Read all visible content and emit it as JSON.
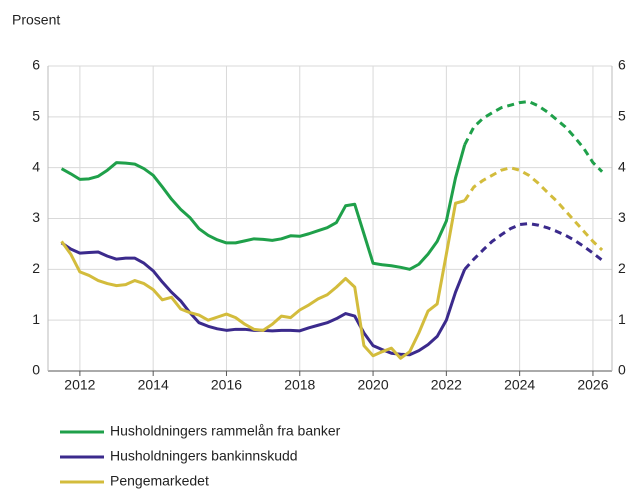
{
  "chart_data": {
    "type": "line",
    "title": "Prosent",
    "x": [
      2011.5,
      2011.75,
      2012,
      2012.25,
      2012.5,
      2012.75,
      2013,
      2013.25,
      2013.5,
      2013.75,
      2014,
      2014.25,
      2014.5,
      2014.75,
      2015,
      2015.25,
      2015.5,
      2015.75,
      2016,
      2016.25,
      2016.5,
      2016.75,
      2017,
      2017.25,
      2017.5,
      2017.75,
      2018,
      2018.25,
      2018.5,
      2018.75,
      2019,
      2019.25,
      2019.5,
      2019.75,
      2020,
      2020.25,
      2020.5,
      2020.75,
      2021,
      2021.25,
      2021.5,
      2021.75,
      2022,
      2022.25,
      2022.5,
      2022.75,
      2023,
      2023.25,
      2023.5,
      2023.75,
      2024,
      2024.25,
      2024.5,
      2024.75,
      2025,
      2025.25,
      2025.5,
      2025.75,
      2026,
      2026.25
    ],
    "series": [
      {
        "name": "Husholdningers rammelån fra banker",
        "color": "#1fa04a",
        "values": [
          3.98,
          3.88,
          3.77,
          3.78,
          3.83,
          3.95,
          4.1,
          4.09,
          4.07,
          3.98,
          3.85,
          3.62,
          3.38,
          3.18,
          3.02,
          2.8,
          2.67,
          2.58,
          2.52,
          2.52,
          2.56,
          2.6,
          2.59,
          2.57,
          2.6,
          2.66,
          2.65,
          2.7,
          2.76,
          2.82,
          2.92,
          3.25,
          3.28,
          2.7,
          2.12,
          2.09,
          2.07,
          2.04,
          2.0,
          2.1,
          2.3,
          2.55,
          2.95,
          3.8,
          4.45,
          4.8,
          4.97,
          5.08,
          5.18,
          5.23,
          5.28,
          5.3,
          5.22,
          5.1,
          4.95,
          4.8,
          4.6,
          4.38,
          4.1,
          3.92
        ]
      },
      {
        "name": "Husholdningers bankinnskudd",
        "color": "#3b2a8c",
        "values": [
          2.52,
          2.4,
          2.32,
          2.33,
          2.34,
          2.26,
          2.2,
          2.22,
          2.22,
          2.12,
          1.97,
          1.75,
          1.55,
          1.38,
          1.15,
          0.95,
          0.88,
          0.83,
          0.8,
          0.82,
          0.82,
          0.8,
          0.8,
          0.79,
          0.8,
          0.8,
          0.79,
          0.85,
          0.9,
          0.95,
          1.03,
          1.13,
          1.08,
          0.75,
          0.5,
          0.42,
          0.35,
          0.33,
          0.32,
          0.4,
          0.52,
          0.68,
          1.0,
          1.55,
          2.0,
          2.2,
          2.38,
          2.55,
          2.68,
          2.8,
          2.88,
          2.9,
          2.87,
          2.82,
          2.75,
          2.67,
          2.57,
          2.45,
          2.32,
          2.18
        ]
      },
      {
        "name": "Pengemarkedet",
        "color": "#d3bc3c",
        "values": [
          2.55,
          2.3,
          1.95,
          1.88,
          1.78,
          1.72,
          1.68,
          1.7,
          1.78,
          1.72,
          1.6,
          1.4,
          1.45,
          1.22,
          1.15,
          1.1,
          1.0,
          1.06,
          1.12,
          1.05,
          0.92,
          0.82,
          0.8,
          0.92,
          1.08,
          1.05,
          1.2,
          1.3,
          1.42,
          1.5,
          1.65,
          1.82,
          1.65,
          0.5,
          0.3,
          0.38,
          0.45,
          0.25,
          0.38,
          0.75,
          1.18,
          1.32,
          2.3,
          3.3,
          3.35,
          3.62,
          3.75,
          3.85,
          3.95,
          4.0,
          3.95,
          3.85,
          3.7,
          3.52,
          3.35,
          3.15,
          2.95,
          2.75,
          2.55,
          2.38
        ]
      }
    ],
    "forecast_from": 2022.5,
    "xlim": [
      2011.13,
      2026.52
    ],
    "xticks": [
      2012,
      2014,
      2016,
      2018,
      2020,
      2022,
      2024,
      2026
    ],
    "ylim": [
      0,
      6
    ],
    "yticks": [
      0,
      1,
      2,
      3,
      4,
      5,
      6
    ],
    "y2lim": [
      0,
      6
    ],
    "y2ticks": [
      0,
      1,
      2,
      3,
      4,
      5,
      6
    ],
    "grid": true
  }
}
